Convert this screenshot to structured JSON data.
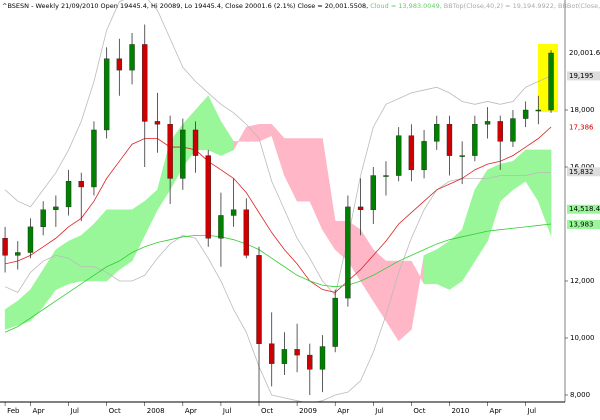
{
  "chart_data": {
    "type": "candlestick",
    "header": [
      {
        "text": "^BSESN - Weekly 21/09/2010 Open 19445.4, Hi 20089, Lo 19445.4, Close 20001.6 (2.1%) Close = 20,001.5508,",
        "color": "#000000"
      },
      {
        "text": "Cloud = 13,983.0049,",
        "color": "#66cc66"
      },
      {
        "text": "BBTop(Close,40,2) = 19,194.9922,",
        "color": "#aaaaaa"
      },
      {
        "text": "BBBot(Close,40,2) = 15,831.7529,",
        "color": "#aaaaaa"
      },
      {
        "text": "EMA",
        "color": "#cc0000"
      }
    ],
    "x": [
      1,
      2,
      3,
      4,
      5,
      6,
      7,
      8,
      9,
      10,
      11,
      12,
      13,
      14,
      15,
      16,
      17,
      18,
      19,
      20,
      21,
      22,
      23,
      24,
      25,
      26,
      27,
      28,
      29,
      30,
      31,
      32,
      33,
      34,
      35,
      36,
      37,
      38,
      39,
      40,
      41,
      42,
      43,
      44
    ],
    "open": [
      13500,
      12900,
      13000,
      13900,
      14500,
      14600,
      15500,
      15300,
      17300,
      19800,
      19400,
      20300,
      17600,
      17500,
      15600,
      17300,
      16400,
      13500,
      14300,
      14500,
      12900,
      9800,
      9100,
      9600,
      9400,
      8900,
      9700,
      11400,
      14600,
      14500,
      15700,
      15700,
      17100,
      15900,
      16900,
      17500,
      16400,
      16400,
      17500,
      17600,
      16900,
      17700,
      18000,
      18000
    ],
    "high": [
      13900,
      13400,
      14200,
      14800,
      15000,
      15900,
      15800,
      17600,
      20200,
      20500,
      20700,
      21000,
      18600,
      17800,
      17700,
      17600,
      16600,
      15100,
      15600,
      14900,
      13200,
      10900,
      10200,
      10500,
      9800,
      10100,
      11700,
      15000,
      15600,
      16000,
      16200,
      17400,
      17500,
      17300,
      17800,
      17800,
      16900,
      17800,
      18100,
      17800,
      18000,
      18300,
      18500,
      20100
    ],
    "low": [
      12300,
      12400,
      12800,
      13600,
      13900,
      14300,
      14100,
      15000,
      17000,
      18500,
      18900,
      16000,
      16500,
      14700,
      15200,
      15800,
      13200,
      12500,
      13900,
      12800,
      7700,
      8300,
      8700,
      8800,
      8000,
      8100,
      9500,
      11100,
      13600,
      14000,
      15000,
      15500,
      15500,
      15600,
      16600,
      15700,
      15400,
      16200,
      17000,
      15900,
      16700,
      17400,
      17500,
      17900
    ],
    "close": [
      12900,
      13000,
      13900,
      14500,
      14600,
      15500,
      15300,
      17300,
      19800,
      19400,
      20300,
      17600,
      17500,
      15600,
      17300,
      16400,
      13500,
      14300,
      14500,
      12900,
      9800,
      9100,
      9600,
      9400,
      8900,
      9700,
      11400,
      14600,
      14500,
      15700,
      15700,
      17100,
      15900,
      16900,
      17500,
      16400,
      16400,
      17500,
      17600,
      16900,
      17700,
      18000,
      18000,
      20000
    ],
    "up_color": "#008000",
    "down_color": "#cc0000",
    "cloud": {
      "span_a": [
        11000,
        11300,
        11700,
        12400,
        13100,
        13400,
        13600,
        14000,
        14500,
        14500,
        14500,
        14800,
        15200,
        16900,
        17500,
        18000,
        18500,
        17600,
        16900,
        16900,
        16900,
        17100,
        15700,
        14800,
        14800,
        13800,
        13100,
        12700,
        12000,
        11300,
        10600,
        9900,
        10300,
        12900,
        13100,
        13400,
        13800,
        15200,
        15900,
        16100,
        16200,
        16600,
        16600,
        16600
      ],
      "span_b": [
        10300,
        10450,
        10600,
        11100,
        11700,
        11900,
        12000,
        12000,
        12000,
        12400,
        12700,
        13600,
        14500,
        15200,
        16000,
        16600,
        16600,
        16400,
        16600,
        17400,
        17500,
        17500,
        17000,
        17000,
        17000,
        17000,
        14100,
        14100,
        13800,
        13100,
        12700,
        12700,
        12700,
        11900,
        11900,
        11700,
        12000,
        12700,
        13400,
        14800,
        15200,
        15500,
        14800,
        13600
      ],
      "up_color": "#99f799",
      "down_color": "#ffb6c6"
    },
    "lines": [
      {
        "color": "#bbbbbb",
        "values": [
          15200,
          14800,
          14600,
          15200,
          15800,
          16600,
          17600,
          19000,
          20800,
          21800,
          22000,
          22000,
          21500,
          20500,
          19500,
          19000,
          18600,
          18200,
          17900,
          17500,
          17000,
          15500,
          14500,
          13500,
          12800,
          12000,
          11500,
          13500,
          15700,
          17400,
          18200,
          18400,
          18600,
          18700,
          18800,
          18600,
          18300,
          18200,
          18300,
          18200,
          18300,
          18800,
          19000,
          19200
        ]
      },
      {
        "color": "#bbbbbb",
        "values": [
          11800,
          11600,
          12300,
          12700,
          12900,
          12800,
          12500,
          12500,
          12300,
          12000,
          12000,
          12200,
          12800,
          13300,
          13600,
          13500,
          12800,
          12000,
          11000,
          10200,
          9000,
          8000,
          7900,
          7800,
          7700,
          7800,
          8000,
          8100,
          8500,
          9500,
          10800,
          12300,
          13500,
          14500,
          15200,
          15500,
          15600,
          15600,
          15600,
          15700,
          15700,
          15700,
          15800,
          15800
        ]
      },
      {
        "color": "#dd2222",
        "values": [
          12600,
          12700,
          12900,
          13200,
          13500,
          13900,
          14200,
          14800,
          15600,
          16200,
          16800,
          17000,
          17000,
          16700,
          16700,
          16600,
          16200,
          15900,
          15600,
          15100,
          14400,
          13700,
          13100,
          12600,
          12000,
          11700,
          11600,
          12000,
          12400,
          12900,
          13400,
          14000,
          14400,
          14800,
          15200,
          15400,
          15600,
          15900,
          16100,
          16200,
          16400,
          16700,
          17000,
          17400
        ]
      },
      {
        "color": "#33cc33",
        "values": [
          10200,
          10400,
          10700,
          11000,
          11300,
          11600,
          11900,
          12200,
          12500,
          12700,
          13000,
          13200,
          13350,
          13450,
          13550,
          13600,
          13600,
          13550,
          13450,
          13300,
          13100,
          12800,
          12500,
          12200,
          12000,
          11850,
          11800,
          11850,
          12000,
          12200,
          12450,
          12700,
          12900,
          13100,
          13300,
          13450,
          13550,
          13650,
          13750,
          13800,
          13850,
          13900,
          13950,
          14000
        ]
      }
    ],
    "price_tags": [
      {
        "value": 20001.6,
        "label": "20,001.6",
        "color": "#000000",
        "bg": "#ffffff"
      },
      {
        "value": 19195,
        "label": "19,195",
        "color": "#000000",
        "bg": "#dddddd"
      },
      {
        "value": 17386,
        "label": "17,386",
        "color": "#cc0000",
        "bg": "#ffffff"
      },
      {
        "value": 15832,
        "label": "15,832",
        "color": "#000000",
        "bg": "#dddddd"
      },
      {
        "value": 14518.4,
        "label": "14,518.4",
        "color": "#000000",
        "bg": "#99f799"
      },
      {
        "value": 13983,
        "label": "13,983",
        "color": "#000000",
        "bg": "#99f799"
      }
    ],
    "xlim": [
      0.6,
      45.1
    ],
    "ylim": [
      7754,
      21860
    ],
    "xticks": [
      {
        "value": 1,
        "label": "Feb"
      },
      {
        "value": 3,
        "label": "Apr"
      },
      {
        "value": 6,
        "label": "Jul"
      },
      {
        "value": 9,
        "label": "Oct"
      },
      {
        "value": 12,
        "label": "2008"
      },
      {
        "value": 15,
        "label": "Apr"
      },
      {
        "value": 18,
        "label": "Jul"
      },
      {
        "value": 21,
        "label": "Oct"
      },
      {
        "value": 24,
        "label": "2009"
      },
      {
        "value": 27,
        "label": "Apr"
      },
      {
        "value": 30,
        "label": "Jul"
      },
      {
        "value": 33,
        "label": "Oct"
      },
      {
        "value": 36,
        "label": "2010"
      },
      {
        "value": 39,
        "label": "Apr"
      },
      {
        "value": 42,
        "label": "Jul"
      }
    ],
    "yticks": [
      {
        "value": 8000,
        "label": "8,000"
      },
      {
        "value": 10000,
        "label": "10,000"
      },
      {
        "value": 12000,
        "label": "12,000"
      },
      {
        "value": 16000,
        "label": "16,000"
      },
      {
        "value": 18000,
        "label": "18,000"
      }
    ]
  }
}
